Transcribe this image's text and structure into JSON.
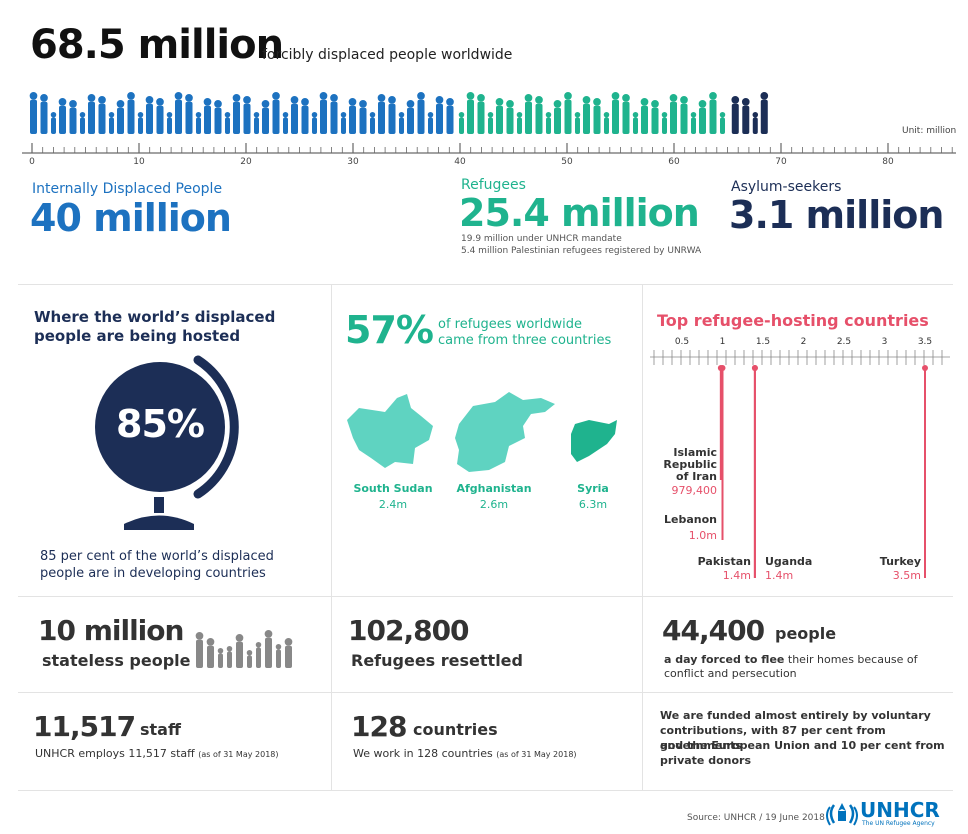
{
  "header": {
    "total": "68.5 million",
    "total_desc": "forcibly displaced people worldwide",
    "unit": "Unit: million"
  },
  "scale": {
    "ticks": [
      "0",
      "10",
      "20",
      "30",
      "40",
      "50",
      "60",
      "70",
      "80"
    ],
    "idp_value": 40,
    "refugees_value": 25.4,
    "asylum_value": 3.1
  },
  "idp": {
    "label": "Internally Displaced People",
    "value": "40 million"
  },
  "refugees": {
    "label": "Refugees",
    "value": "25.4 million",
    "note1": "19.9 million under UNHCR mandate",
    "note2": "5.4 million Palestinian refugees registered by UNRWA"
  },
  "asylum": {
    "label": "Asylum-seekers",
    "value": "3.1 million"
  },
  "hosted": {
    "title": "Where the world’s displaced people are being hosted",
    "pct": "85%",
    "desc": "85 per cent of the world’s displaced people are in developing countries"
  },
  "origin": {
    "pct": "57%",
    "desc1": "of refugees worldwide",
    "desc2": "came from three countries",
    "countries": [
      {
        "name": "South Sudan",
        "value": "2.4m"
      },
      {
        "name": "Afghanistan",
        "value": "2.6m"
      },
      {
        "name": "Syria",
        "value": "6.3m"
      }
    ]
  },
  "hosting": {
    "title": "Top refugee-hosting countries",
    "ticks": [
      "0.5",
      "1",
      "1.5",
      "2",
      "2.5",
      "3",
      "3.5"
    ],
    "countries": [
      {
        "name1": "Islamic",
        "name2": "Republic",
        "name3": "of Iran",
        "value": "979,400",
        "num": 0.9794
      },
      {
        "name1": "Lebanon",
        "value": "1.0m",
        "num": 1.0
      },
      {
        "name1": "Pakistan",
        "value": "1.4m",
        "num": 1.4
      },
      {
        "name1": "Uganda",
        "value": "1.4m",
        "num": 1.4
      },
      {
        "name1": "Turkey",
        "value": "3.5m",
        "num": 3.5
      }
    ]
  },
  "stateless": {
    "value": "10 million",
    "label": "stateless people"
  },
  "resettled": {
    "value": "102,800",
    "label": "Refugees resettled"
  },
  "daily": {
    "value": "44,400",
    "unit": "people",
    "emph": "a day forced to flee",
    "rest1": " their homes because of",
    "rest2": "conflict and persecution"
  },
  "staff": {
    "value": "11,517",
    "unit": "staff",
    "desc": "UNHCR employs 11,517 staff",
    "date": "(as of 31 May 2018)"
  },
  "countries": {
    "value": "128",
    "unit": "countries",
    "desc": "We work in 128 countries",
    "date": "(as of 31 May 2018)"
  },
  "funding": {
    "line1": "We are funded almost entirely by voluntary",
    "line2": "contributions, with 87 per cent from governments",
    "line3": "and the European Union and 10 per cent from",
    "line4": "private donors"
  },
  "footer": {
    "source": "Source: UNHCR / 19 June 2018",
    "logo": "UNHCR",
    "tagline": "The UN Refugee Agency"
  },
  "colors": {
    "idp": "#1d72c0",
    "refugees": "#1fb38e",
    "asylum": "#1c2e56",
    "hosting": "#e6506a"
  }
}
